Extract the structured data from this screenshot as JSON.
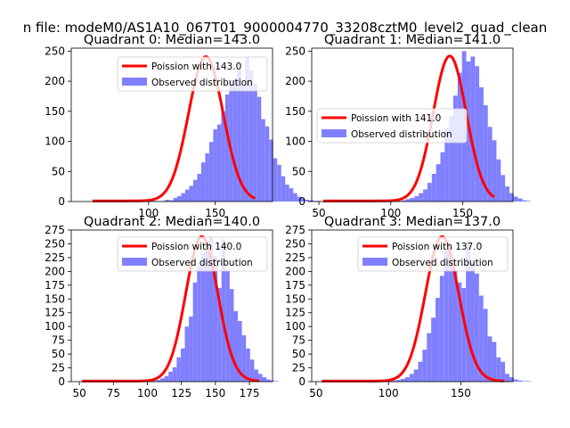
{
  "figure": {
    "suptitle": "n file: modeM0/AS1A10_067T01_9000004770_33208cztM0_level2_quad_clean"
  },
  "chart_data": [
    {
      "type": "bar",
      "title": "Quadrant 0: Median=143.0",
      "xlim": [
        42,
        193
      ],
      "ylim": [
        0,
        255
      ],
      "xticks": [
        100,
        150
      ],
      "yticks": [
        0,
        50,
        100,
        150,
        200,
        250
      ],
      "legend": {
        "position": "top-right",
        "line_label": "Poission with 143.0",
        "bar_label": "Observed distribution"
      },
      "bin_start": 58.5,
      "bin_width": 3,
      "counts": [
        1,
        1,
        0,
        0,
        0,
        2,
        0,
        1,
        0,
        0,
        0,
        0,
        0,
        0,
        0,
        1,
        0,
        1,
        3,
        2,
        6,
        9,
        14,
        20,
        26,
        36,
        46,
        65,
        80,
        99,
        120,
        128,
        150,
        178,
        195,
        203,
        218,
        192,
        240,
        218,
        196,
        174,
        137,
        125,
        103,
        72,
        61,
        42,
        28,
        22,
        14,
        8,
        5,
        3,
        2,
        1,
        1,
        0,
        0,
        0
      ],
      "curve": {
        "lambda": 143.0,
        "peak": 240,
        "sigma": 13.0,
        "x_from": 58,
        "x_to": 180
      },
      "colors": {
        "bars": "#8080ff",
        "curve": "#ff0000"
      }
    },
    {
      "type": "bar",
      "title": "Quadrant 1: Median=141.0",
      "xlim": [
        45,
        185
      ],
      "ylim": [
        0,
        255
      ],
      "xticks": [
        50,
        100,
        150
      ],
      "yticks": [
        0,
        50,
        100,
        150,
        200,
        250
      ],
      "legend": {
        "position": "center-left",
        "line_label": "Poission with 141.0",
        "bar_label": "Observed distribution"
      },
      "bin_start": 53.5,
      "bin_width": 3,
      "counts": [
        1,
        0,
        0,
        0,
        2,
        0,
        0,
        1,
        0,
        0,
        0,
        2,
        0,
        1,
        0,
        0,
        1,
        0,
        2,
        4,
        6,
        9,
        14,
        20,
        31,
        46,
        62,
        82,
        121,
        142,
        176,
        214,
        250,
        233,
        241,
        225,
        190,
        160,
        124,
        102,
        70,
        44,
        25,
        14,
        8,
        5,
        2,
        1,
        0,
        0
      ],
      "curve": {
        "lambda": 141.0,
        "peak": 241,
        "sigma": 11.5,
        "x_from": 53,
        "x_to": 172
      },
      "colors": {
        "bars": "#8080ff",
        "curve": "#ff0000"
      }
    },
    {
      "type": "bar",
      "title": "Quadrant 2: Median=140.0",
      "xlim": [
        44,
        192
      ],
      "ylim": [
        0,
        275
      ],
      "xticks": [
        50,
        75,
        100,
        125,
        150,
        175
      ],
      "yticks": [
        0,
        25,
        50,
        75,
        100,
        125,
        150,
        175,
        200,
        225,
        250,
        275
      ],
      "legend": {
        "position": "top-right",
        "line_label": "Poission with 140.0",
        "bar_label": "Observed distribution"
      },
      "bin_start": 52.5,
      "bin_width": 3,
      "counts": [
        1,
        0,
        0,
        0,
        1,
        0,
        2,
        0,
        1,
        0,
        0,
        1,
        0,
        0,
        0,
        0,
        1,
        2,
        3,
        6,
        10,
        18,
        26,
        44,
        60,
        100,
        118,
        180,
        210,
        234,
        250,
        262,
        228,
        170,
        258,
        202,
        168,
        128,
        110,
        84,
        60,
        40,
        22,
        14,
        8,
        4,
        2,
        1,
        0,
        0
      ],
      "curve": {
        "lambda": 140.0,
        "peak": 262,
        "sigma": 11.8,
        "x_from": 52,
        "x_to": 182
      },
      "colors": {
        "bars": "#8080ff",
        "curve": "#ff0000"
      }
    },
    {
      "type": "bar",
      "title": "Quadrant 3: Median=137.0",
      "xlim": [
        47,
        186
      ],
      "ylim": [
        0,
        275
      ],
      "xticks": [
        50,
        100,
        150
      ],
      "yticks": [
        0,
        25,
        50,
        75,
        100,
        125,
        150,
        175,
        200,
        225,
        250,
        275
      ],
      "legend": {
        "position": "top-right",
        "line_label": "Poission with 137.0",
        "bar_label": "Observed distribution"
      },
      "bin_start": 54.5,
      "bin_width": 3,
      "counts": [
        1,
        0,
        0,
        0,
        0,
        1,
        0,
        0,
        1,
        0,
        0,
        0,
        0,
        0,
        0,
        1,
        2,
        3,
        5,
        8,
        14,
        22,
        36,
        58,
        88,
        116,
        152,
        192,
        238,
        234,
        200,
        180,
        170,
        252,
        216,
        196,
        156,
        132,
        82,
        72,
        44,
        36,
        14,
        8,
        4,
        2,
        1,
        1,
        0,
        0
      ],
      "curve": {
        "lambda": 137.0,
        "peak": 262,
        "sigma": 11.5,
        "x_from": 54,
        "x_to": 180
      },
      "colors": {
        "bars": "#8080ff",
        "curve": "#ff0000"
      }
    }
  ]
}
